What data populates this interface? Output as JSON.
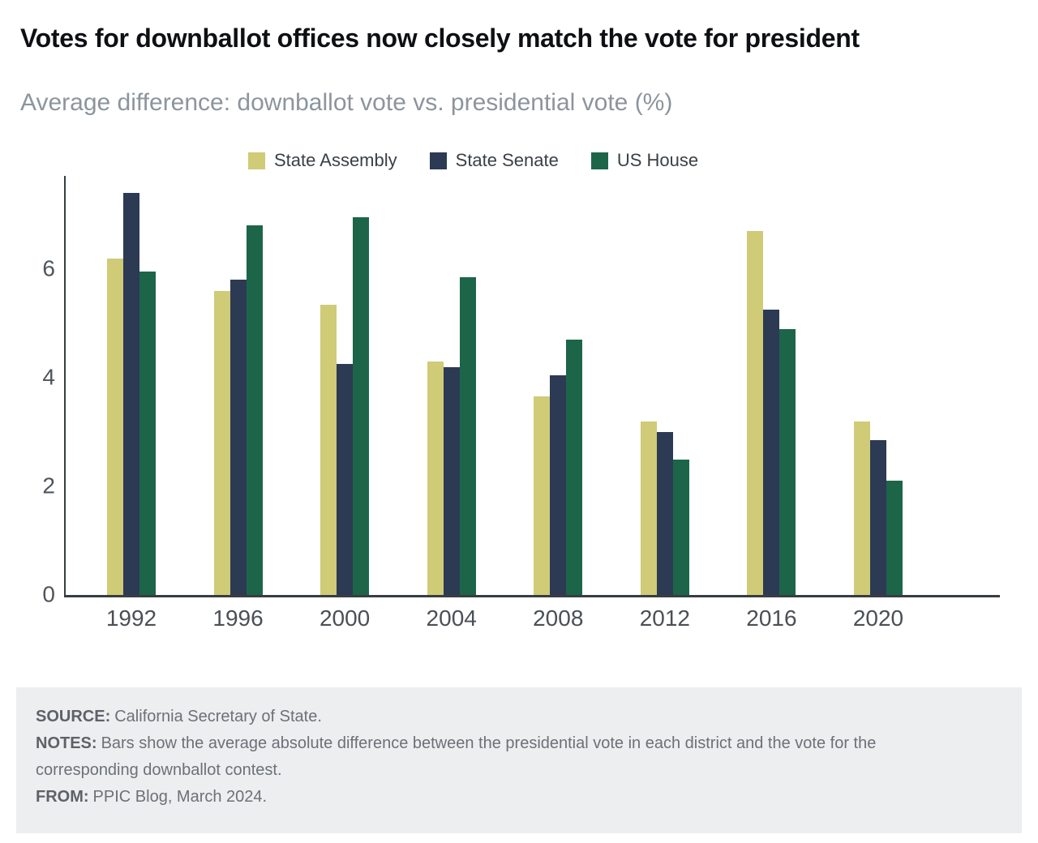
{
  "header": {
    "title": "Votes for downballot offices now closely match the vote for president",
    "subtitle": "Average difference: downballot vote vs. presidential vote (%)"
  },
  "chart_data": {
    "type": "bar",
    "title": "Average difference: downballot vote vs. presidential vote (%)",
    "categories": [
      "1992",
      "1996",
      "2000",
      "2004",
      "2008",
      "2012",
      "2016",
      "2020"
    ],
    "series": [
      {
        "name": "State Assembly",
        "color": "#cfcb77",
        "values": [
          6.2,
          5.6,
          5.35,
          4.3,
          3.65,
          3.2,
          6.7,
          3.2
        ]
      },
      {
        "name": "State Senate",
        "color": "#2c3a53",
        "values": [
          7.4,
          5.8,
          4.25,
          4.2,
          4.05,
          3.0,
          5.25,
          2.85
        ]
      },
      {
        "name": "US House",
        "color": "#1d6549",
        "values": [
          5.95,
          6.8,
          6.95,
          5.85,
          4.7,
          2.5,
          4.9,
          2.1
        ]
      }
    ],
    "xlabel": "",
    "ylabel": "",
    "ylim": [
      0,
      7.73
    ],
    "yticks": [
      0,
      2,
      4,
      6
    ],
    "grid": false,
    "legend_position": "top"
  },
  "footer": {
    "source_label": "SOURCE:",
    "source_text": "California Secretary of State.",
    "notes_label": "NOTES:",
    "notes_text": "Bars show the average absolute difference between the presidential vote in each district and the vote for the corresponding downballot contest.",
    "from_label": "FROM:",
    "from_text": "PPIC Blog, March 2024."
  },
  "colors": {
    "footer_bg": "#edeef0",
    "axis": "#383d42",
    "assembly": "#cfcb77",
    "senate": "#2c3a53",
    "us_house": "#1d6549"
  }
}
